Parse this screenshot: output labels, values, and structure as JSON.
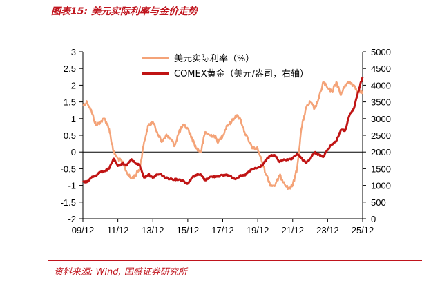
{
  "header": {
    "title": "图表15:  美元实际利率与金价走势"
  },
  "footer": {
    "source": "资料来源:  Wind,  国盛证券研究所"
  },
  "chart_data": {
    "type": "line",
    "title": "",
    "x_ticks": [
      "09/12",
      "11/12",
      "13/12",
      "15/12",
      "17/12",
      "19/12",
      "21/12",
      "23/12",
      "25/12"
    ],
    "x_range": [
      "2009-12",
      "2025-12"
    ],
    "y_left": {
      "ticks": [
        "3",
        "2.5",
        "2",
        "1.5",
        "1",
        "0.5",
        "0",
        "-0.5",
        "-1",
        "-1.5",
        "-2"
      ],
      "range": [
        -2,
        3
      ]
    },
    "y_right": {
      "ticks": [
        "5000",
        "4500",
        "4000",
        "3500",
        "3000",
        "2500",
        "2000",
        "1500",
        "1000",
        "500",
        "0"
      ],
      "range": [
        0,
        5000
      ]
    },
    "grid": false,
    "legend_position": "top-center",
    "series": [
      {
        "name": "美元实际利率（%）",
        "axis": "left",
        "color": "#f4a378",
        "x": [
          "2009-12",
          "2010-03",
          "2010-06",
          "2010-09",
          "2010-12",
          "2011-03",
          "2011-06",
          "2011-09",
          "2011-12",
          "2012-03",
          "2012-06",
          "2012-09",
          "2012-12",
          "2013-03",
          "2013-06",
          "2013-09",
          "2013-12",
          "2014-03",
          "2014-06",
          "2014-09",
          "2014-12",
          "2015-03",
          "2015-06",
          "2015-09",
          "2015-12",
          "2016-03",
          "2016-06",
          "2016-09",
          "2016-12",
          "2017-03",
          "2017-06",
          "2017-09",
          "2017-12",
          "2018-03",
          "2018-06",
          "2018-09",
          "2018-12",
          "2019-03",
          "2019-06",
          "2019-09",
          "2019-12",
          "2020-03",
          "2020-06",
          "2020-09",
          "2020-12",
          "2021-03",
          "2021-06",
          "2021-09",
          "2021-12",
          "2022-03",
          "2022-06",
          "2022-09",
          "2022-12",
          "2023-03",
          "2023-06",
          "2023-09",
          "2023-12",
          "2024-03",
          "2024-06",
          "2024-09",
          "2024-12",
          "2025-03",
          "2025-06",
          "2025-09",
          "2025-12"
        ],
        "values": [
          1.4,
          1.5,
          1.2,
          0.8,
          0.9,
          1.0,
          0.7,
          0.0,
          -0.2,
          -0.3,
          -0.6,
          -0.8,
          -0.7,
          -0.5,
          0.3,
          0.8,
          0.9,
          0.6,
          0.3,
          0.5,
          0.4,
          0.2,
          0.6,
          0.8,
          0.7,
          0.4,
          0.1,
          0.0,
          0.6,
          0.5,
          0.5,
          0.3,
          0.5,
          0.8,
          0.9,
          1.1,
          1.0,
          0.6,
          0.3,
          0.1,
          0.1,
          -0.3,
          -0.7,
          -1.0,
          -1.0,
          -0.7,
          -0.9,
          -1.1,
          -1.0,
          -0.5,
          0.7,
          1.3,
          1.5,
          1.3,
          1.6,
          2.1,
          1.9,
          1.8,
          2.1,
          1.7,
          2.0,
          2.1,
          2.0,
          1.8,
          1.8
        ]
      },
      {
        "name": "COMEX黄金（美元/盎司，右轴）",
        "axis": "right",
        "color": "#c01414",
        "x": [
          "2009-12",
          "2010-03",
          "2010-06",
          "2010-09",
          "2010-12",
          "2011-03",
          "2011-06",
          "2011-09",
          "2011-12",
          "2012-03",
          "2012-06",
          "2012-09",
          "2012-12",
          "2013-03",
          "2013-06",
          "2013-09",
          "2013-12",
          "2014-03",
          "2014-06",
          "2014-09",
          "2014-12",
          "2015-03",
          "2015-06",
          "2015-09",
          "2015-12",
          "2016-03",
          "2016-06",
          "2016-09",
          "2016-12",
          "2017-03",
          "2017-06",
          "2017-09",
          "2017-12",
          "2018-03",
          "2018-06",
          "2018-09",
          "2018-12",
          "2019-03",
          "2019-06",
          "2019-09",
          "2019-12",
          "2020-03",
          "2020-06",
          "2020-09",
          "2020-12",
          "2021-03",
          "2021-06",
          "2021-09",
          "2021-12",
          "2022-03",
          "2022-06",
          "2022-09",
          "2022-12",
          "2023-03",
          "2023-06",
          "2023-09",
          "2023-12",
          "2024-03",
          "2024-06",
          "2024-09",
          "2024-12",
          "2025-03",
          "2025-06",
          "2025-09",
          "2025-12"
        ],
        "values": [
          1100,
          1110,
          1240,
          1300,
          1400,
          1430,
          1500,
          1800,
          1580,
          1660,
          1600,
          1770,
          1680,
          1600,
          1230,
          1330,
          1220,
          1330,
          1320,
          1220,
          1200,
          1180,
          1175,
          1130,
          1060,
          1240,
          1320,
          1320,
          1150,
          1250,
          1260,
          1280,
          1300,
          1320,
          1250,
          1200,
          1280,
          1300,
          1410,
          1500,
          1520,
          1600,
          1770,
          1890,
          1890,
          1700,
          1780,
          1760,
          1800,
          1950,
          1810,
          1670,
          1800,
          1980,
          1920,
          1850,
          2070,
          2240,
          2330,
          2660,
          2640,
          3100,
          3300,
          3800,
          4250
        ]
      }
    ]
  }
}
